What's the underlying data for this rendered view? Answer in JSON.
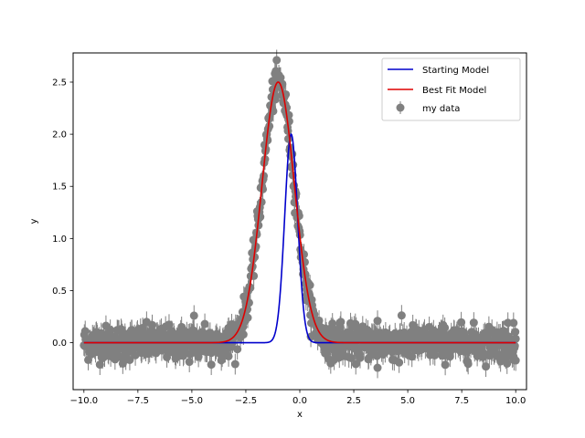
{
  "chart_data": {
    "type": "scatter",
    "title": "",
    "xlabel": "x",
    "ylabel": "y",
    "xlim": [
      -10.5,
      10.5
    ],
    "ylim": [
      -0.45,
      2.78
    ],
    "xticks": [
      -10.0,
      -7.5,
      -5.0,
      -2.5,
      0.0,
      2.5,
      5.0,
      7.5,
      10.0
    ],
    "xtick_labels": [
      "−10.0",
      "−7.5",
      "−5.0",
      "−2.5",
      "0.0",
      "2.5",
      "5.0",
      "7.5",
      "10.0"
    ],
    "yticks": [
      0.0,
      0.5,
      1.0,
      1.5,
      2.0,
      2.5
    ],
    "ytick_labels": [
      "0.0",
      "0.5",
      "1.0",
      "1.5",
      "2.0",
      "2.5"
    ],
    "grid": false,
    "legend_position": "top-right",
    "data": {
      "name": "my data",
      "color": "#808080",
      "x_range": [
        -10.0,
        10.0
      ],
      "n_points": 1000,
      "y_error": 0.1,
      "noise_sd": 0.08
    },
    "series": [
      {
        "name": "Starting Model",
        "type": "gaussian",
        "amplitude": 2.0,
        "mean": -0.4,
        "stddev": 0.3,
        "color": "#0000cc"
      },
      {
        "name": "Best Fit Model",
        "type": "gaussian",
        "amplitude": 2.5,
        "mean": -1.0,
        "stddev": 0.75,
        "color": "#dd0000"
      }
    ],
    "outliers": [
      {
        "x": -8.2,
        "y": -0.2
      },
      {
        "x": -4.9,
        "y": 0.26
      },
      {
        "x": -4.4,
        "y": 0.18
      },
      {
        "x": -4.1,
        "y": -0.21
      },
      {
        "x": -3.3,
        "y": -0.13
      },
      {
        "x": 1.9,
        "y": 0.2
      },
      {
        "x": 3.6,
        "y": 0.21
      },
      {
        "x": 3.6,
        "y": -0.24
      },
      {
        "x": 4.6,
        "y": -0.19
      },
      {
        "x": 9.6,
        "y": -0.2
      },
      {
        "x": 9.9,
        "y": 0.19
      },
      {
        "x": 10.0,
        "y": -0.17
      }
    ]
  }
}
